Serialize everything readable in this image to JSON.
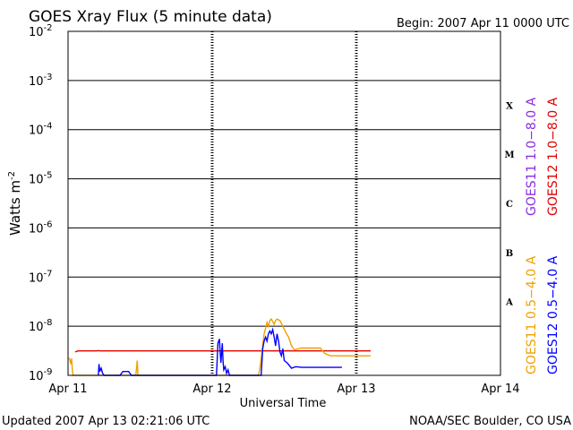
{
  "chart_data": {
    "type": "line",
    "title": "GOES Xray Flux (5 minute data)",
    "begin_label": "Begin:  2007 Apr 11 0000 UTC",
    "ylabel": "Watts m",
    "ylabel_sup": "-2",
    "xlabel": "Universal Time",
    "y_scale": "log",
    "ylim": [
      1e-09,
      0.01
    ],
    "y_ticks": [
      {
        "base": "10",
        "exp": "-9"
      },
      {
        "base": "10",
        "exp": "-8"
      },
      {
        "base": "10",
        "exp": "-7"
      },
      {
        "base": "10",
        "exp": "-6"
      },
      {
        "base": "10",
        "exp": "-5"
      },
      {
        "base": "10",
        "exp": "-4"
      },
      {
        "base": "10",
        "exp": "-3"
      },
      {
        "base": "10",
        "exp": "-2"
      }
    ],
    "x_unit": "days since 2007 Apr 11 00:00 UTC",
    "xlim": [
      0,
      3
    ],
    "x_ticks": [
      "Apr 11",
      "Apr 12",
      "Apr 13",
      "Apr 14"
    ],
    "flare_classes": [
      "A",
      "B",
      "C",
      "M",
      "X"
    ],
    "grid": "horizontal lines at each decade; dashed vertical lines at day boundaries",
    "legend_right": [
      {
        "label": "GOES11 1.0−8.0 A",
        "color": "#8a2be2"
      },
      {
        "label": "GOES12 1.0−8.0 A",
        "color": "#e00000"
      }
    ],
    "legend_right_low": [
      {
        "label": "GOES11 0.5−4.0 A",
        "color": "#f0a000"
      },
      {
        "label": "GOES12 0.5−4.0 A",
        "color": "#0000ff"
      }
    ],
    "series": [
      {
        "name": "GOES12 1.0−8.0 A",
        "color": "#e00000",
        "points": [
          [
            0.05,
            3e-09
          ],
          [
            0.07,
            3.15e-09
          ],
          [
            0.2,
            3.15e-09
          ],
          [
            0.21,
            3.2e-09
          ],
          [
            0.22,
            3.15e-09
          ],
          [
            0.4,
            3.15e-09
          ],
          [
            1.0,
            3.15e-09
          ],
          [
            1.5,
            3.15e-09
          ],
          [
            2.0,
            3.15e-09
          ],
          [
            2.1,
            3.15e-09
          ]
        ]
      },
      {
        "name": "GOES11 0.5−4.0 A",
        "color": "#f0a000",
        "points": [
          [
            0.0,
            2.2e-09
          ],
          [
            0.01,
            2.2e-09
          ],
          [
            0.02,
            1.7e-09
          ],
          [
            0.025,
            2.2e-09
          ],
          [
            0.03,
            1.3e-09
          ],
          [
            0.035,
            1e-09
          ],
          [
            0.47,
            1e-09
          ],
          [
            0.48,
            2e-09
          ],
          [
            0.485,
            1e-09
          ],
          [
            1.32,
            1e-09
          ],
          [
            1.33,
            1.3e-09
          ],
          [
            1.34,
            2.2e-09
          ],
          [
            1.35,
            4e-09
          ],
          [
            1.36,
            7e-09
          ],
          [
            1.37,
            9e-09
          ],
          [
            1.38,
            1.2e-08
          ],
          [
            1.39,
            1e-08
          ],
          [
            1.4,
            1.3e-08
          ],
          [
            1.41,
            1.4e-08
          ],
          [
            1.42,
            1.25e-08
          ],
          [
            1.43,
            1.1e-08
          ],
          [
            1.44,
            1.3e-08
          ],
          [
            1.45,
            1.4e-08
          ],
          [
            1.47,
            1.3e-08
          ],
          [
            1.49,
            1e-08
          ],
          [
            1.51,
            7.5e-09
          ],
          [
            1.53,
            6e-09
          ],
          [
            1.55,
            4e-09
          ],
          [
            1.57,
            3.3e-09
          ],
          [
            1.6,
            3.5e-09
          ],
          [
            1.62,
            3.6e-09
          ],
          [
            1.65,
            3.6e-09
          ],
          [
            1.7,
            3.6e-09
          ],
          [
            1.75,
            3.6e-09
          ],
          [
            1.78,
            2.8e-09
          ],
          [
            1.82,
            2.5e-09
          ],
          [
            1.9,
            2.5e-09
          ],
          [
            2.0,
            2.5e-09
          ],
          [
            2.1,
            2.5e-09
          ]
        ]
      },
      {
        "name": "GOES12 0.5−4.0 A",
        "color": "#0000ff",
        "points": [
          [
            0.21,
            1e-09
          ],
          [
            0.215,
            1.7e-09
          ],
          [
            0.22,
            1.2e-09
          ],
          [
            0.23,
            1.4e-09
          ],
          [
            0.24,
            1.1e-09
          ],
          [
            0.25,
            1e-09
          ],
          [
            0.36,
            1e-09
          ],
          [
            0.38,
            1.2e-09
          ],
          [
            0.42,
            1.2e-09
          ],
          [
            0.44,
            1e-09
          ],
          [
            1.03,
            1e-09
          ],
          [
            1.04,
            4.5e-09
          ],
          [
            1.05,
            5.5e-09
          ],
          [
            1.055,
            3e-09
          ],
          [
            1.06,
            1.8e-09
          ],
          [
            1.07,
            4.5e-09
          ],
          [
            1.075,
            2e-09
          ],
          [
            1.08,
            1.3e-09
          ],
          [
            1.09,
            1.5e-09
          ],
          [
            1.1,
            1.1e-09
          ],
          [
            1.11,
            1.3e-09
          ],
          [
            1.12,
            1e-09
          ],
          [
            1.14,
            1e-09
          ],
          [
            1.34,
            1e-09
          ],
          [
            1.35,
            3.5e-09
          ],
          [
            1.36,
            5e-09
          ],
          [
            1.37,
            6e-09
          ],
          [
            1.38,
            5e-09
          ],
          [
            1.39,
            7e-09
          ],
          [
            1.4,
            8e-09
          ],
          [
            1.41,
            7e-09
          ],
          [
            1.42,
            8.5e-09
          ],
          [
            1.43,
            6e-09
          ],
          [
            1.44,
            4e-09
          ],
          [
            1.45,
            7e-09
          ],
          [
            1.46,
            5e-09
          ],
          [
            1.47,
            3e-09
          ],
          [
            1.48,
            2.5e-09
          ],
          [
            1.49,
            3.5e-09
          ],
          [
            1.5,
            2e-09
          ],
          [
            1.52,
            1.8e-09
          ],
          [
            1.55,
            1.4e-09
          ],
          [
            1.58,
            1.5e-09
          ],
          [
            1.62,
            1.45e-09
          ],
          [
            1.7,
            1.45e-09
          ],
          [
            1.8,
            1.45e-09
          ],
          [
            1.9,
            1.45e-09
          ]
        ]
      }
    ]
  },
  "footer": {
    "updated": "Updated 2007 Apr 13 02:21:06 UTC",
    "source": "NOAA/SEC Boulder, CO USA"
  },
  "colors": {
    "goes11_long": "#8a2be2",
    "goes12_long": "#e00000",
    "goes11_short": "#f0a000",
    "goes12_short": "#0000ff"
  }
}
